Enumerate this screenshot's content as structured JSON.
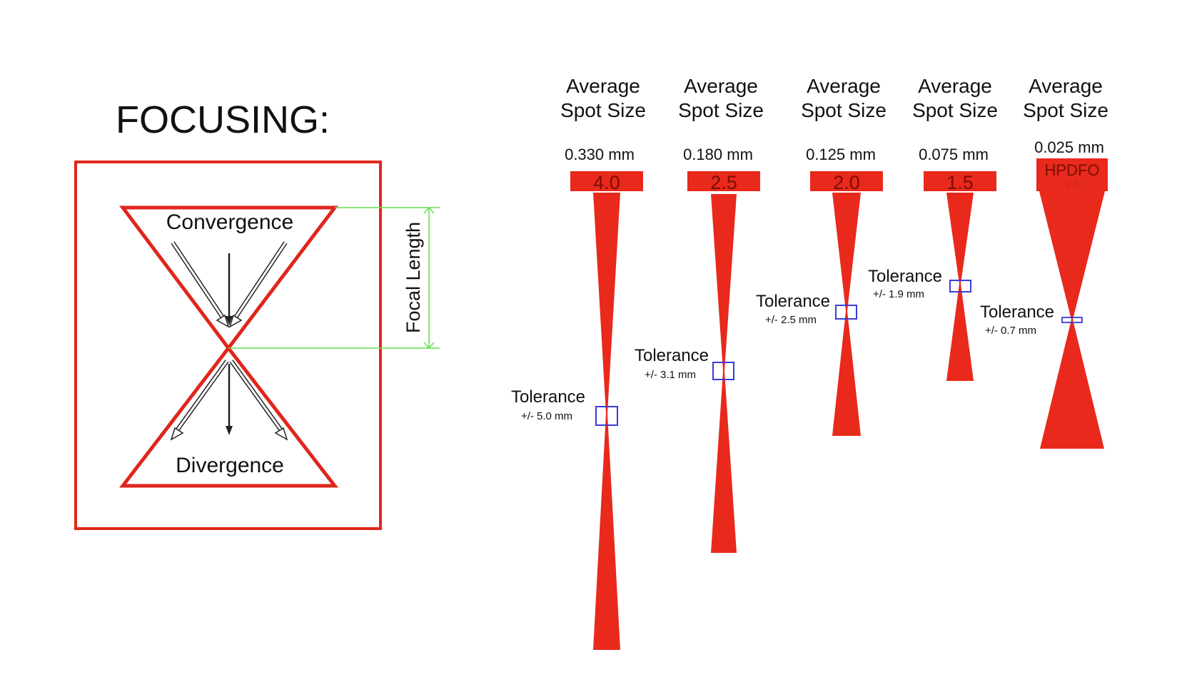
{
  "focusing": {
    "title": "FOCUSING:",
    "convergence_label": "Convergence",
    "divergence_label": "Divergence",
    "focal_length_label": "Focal Length"
  },
  "lenses": [
    {
      "heading_line1": "Average",
      "heading_line2": "Spot Size",
      "spot_size": "0.330 mm",
      "cap_label": "4.0",
      "tolerance_label": "Tolerance",
      "tolerance_value": "+/- 5.0 mm"
    },
    {
      "heading_line1": "Average",
      "heading_line2": "Spot Size",
      "spot_size": "0.180 mm",
      "cap_label": "2.5",
      "tolerance_label": "Tolerance",
      "tolerance_value": "+/- 3.1 mm"
    },
    {
      "heading_line1": "Average",
      "heading_line2": "Spot Size",
      "spot_size": "0.125 mm",
      "cap_label": "2.0",
      "tolerance_label": "Tolerance",
      "tolerance_value": "+/- 2.5 mm"
    },
    {
      "heading_line1": "Average",
      "heading_line2": "Spot Size",
      "spot_size": "0.075 mm",
      "cap_label": "1.5",
      "tolerance_label": "Tolerance",
      "tolerance_value": "+/- 1.9 mm"
    },
    {
      "heading_line1": "Average",
      "heading_line2": "Spot Size",
      "spot_size": "0.025 mm",
      "cap_label": "HPDFO",
      "cap_sublabel": "2.0",
      "tolerance_label": "Tolerance",
      "tolerance_value": "+/- 0.7 mm"
    }
  ],
  "colors": {
    "beam": "#e8291c",
    "frame": "#e0261c",
    "focal_line": "#66dd55",
    "tolerance_box": "#3b3bd6",
    "text": "#111111"
  }
}
